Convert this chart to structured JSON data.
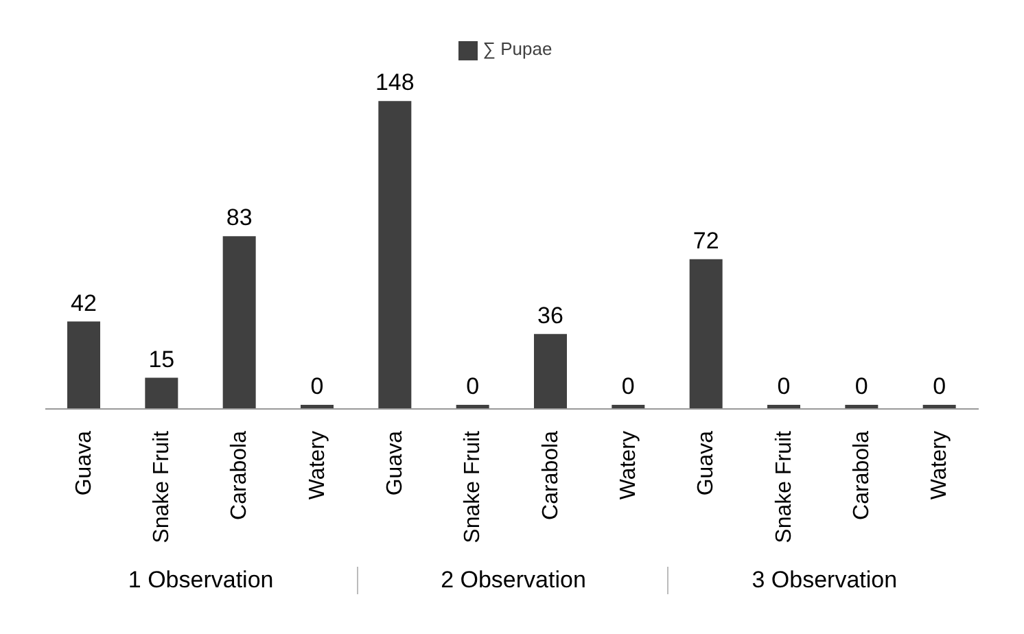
{
  "chart_data": {
    "type": "bar",
    "categories": [
      "Guava",
      "Snake Fruit",
      "Carabola",
      "Watery",
      "Guava",
      "Snake Fruit",
      "Carabola",
      "Watery",
      "Guava",
      "Snake Fruit",
      "Carabola",
      "Watery"
    ],
    "series": [
      {
        "name": "∑ Pupae",
        "color": "#404040",
        "values": [
          42,
          15,
          83,
          0,
          148,
          0,
          36,
          0,
          72,
          0,
          0,
          0
        ]
      }
    ],
    "data_labels": true,
    "legend": "top",
    "annotations": [
      "1 Observation",
      "2 Observation",
      "3 Observation"
    ]
  }
}
